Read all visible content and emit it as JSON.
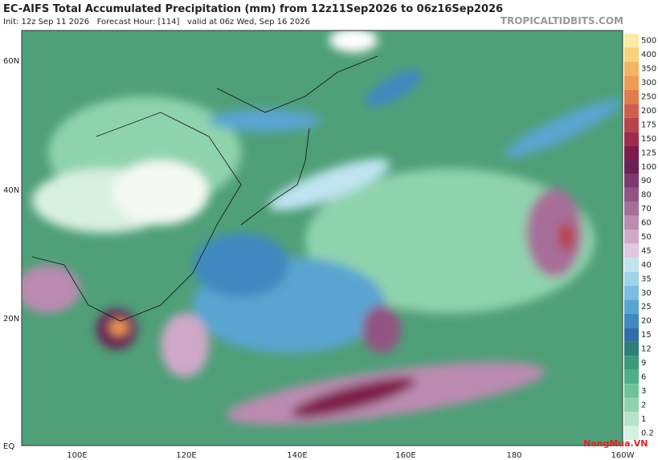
{
  "header": {
    "title": "EC-AIFS Total Accumulated Precipitation (mm) from 12z11Sep2026 to 06z16Sep2026",
    "subtitle": "Init: 12z Sep 11 2026   Forecast Hour: [114]   valid at 06z Wed, Sep 16 2026",
    "site": "TROPICALTIDBITS.COM"
  },
  "map": {
    "lat_labels": [
      "60N",
      "40N",
      "20N",
      "EQ"
    ],
    "lon_labels": [
      "100E",
      "120E",
      "140E",
      "160E",
      "180",
      "160W"
    ]
  },
  "colorbar": {
    "labels": [
      "500",
      "400",
      "350",
      "300",
      "250",
      "200",
      "175",
      "150",
      "125",
      "100",
      "90",
      "80",
      "70",
      "60",
      "50",
      "45",
      "40",
      "35",
      "30",
      "25",
      "20",
      "15",
      "12",
      "9",
      "6",
      "3",
      "2",
      "1",
      "0.2"
    ],
    "colors": [
      "#fbeaa6",
      "#f7d27a",
      "#f2b561",
      "#ee9b55",
      "#e27d4c",
      "#cf5f4c",
      "#b8434c",
      "#9e2b4c",
      "#7e1a4a",
      "#6b1f55",
      "#7e3a6c",
      "#925483",
      "#a76e99",
      "#bb8bb0",
      "#d0a9c8",
      "#e3c6df",
      "#c0e4f0",
      "#9fd3ea",
      "#7cbde0",
      "#5aa4d2",
      "#3f89c0",
      "#2f6ea8",
      "#2d7f78",
      "#3a9a7a",
      "#4fae86",
      "#6dc39a",
      "#8fd3ae",
      "#b4e3c7",
      "#d8f0e0"
    ]
  },
  "watermark": "NangMua.VN"
}
